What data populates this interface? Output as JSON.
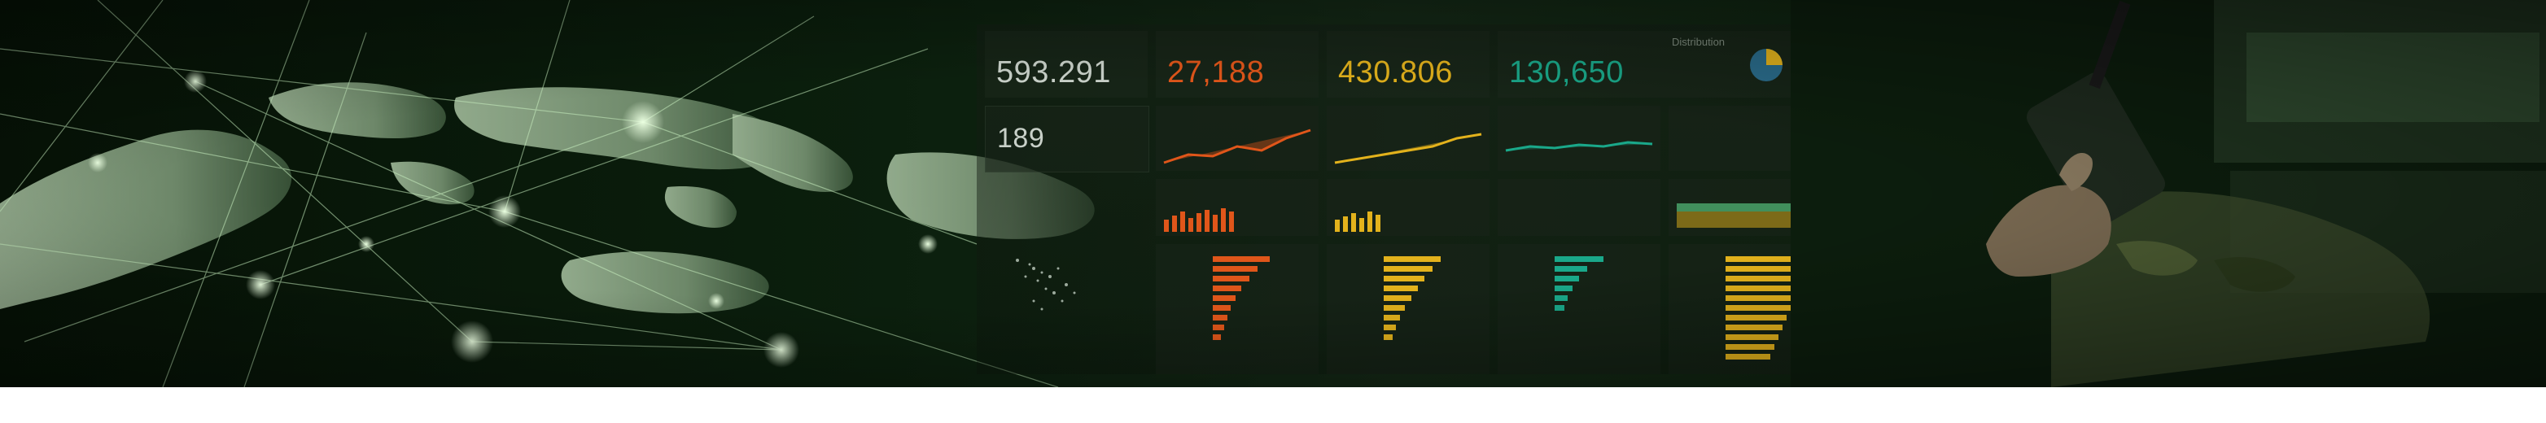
{
  "banner": {
    "theme_colors": {
      "background": "#0b1f0d",
      "map_land": "#9fb89a",
      "network_lines": "#c9f0c0",
      "accent_orange": "#e0561a",
      "accent_yellow": "#e3b21c",
      "accent_teal": "#1aa88a"
    }
  },
  "dashboard": {
    "kpis": [
      {
        "label": "",
        "value": "593.291"
      },
      {
        "label": "",
        "value": "27,188"
      },
      {
        "label": "",
        "value": "430.806"
      },
      {
        "label": "",
        "value": "130,650"
      }
    ],
    "secondary_kpi": {
      "label": "",
      "value": "189"
    },
    "distribution_label": "Distribution"
  },
  "icons": {
    "globe": "world-map-icon",
    "network": "network-lines-icon",
    "radio": "radio-handset-icon"
  }
}
